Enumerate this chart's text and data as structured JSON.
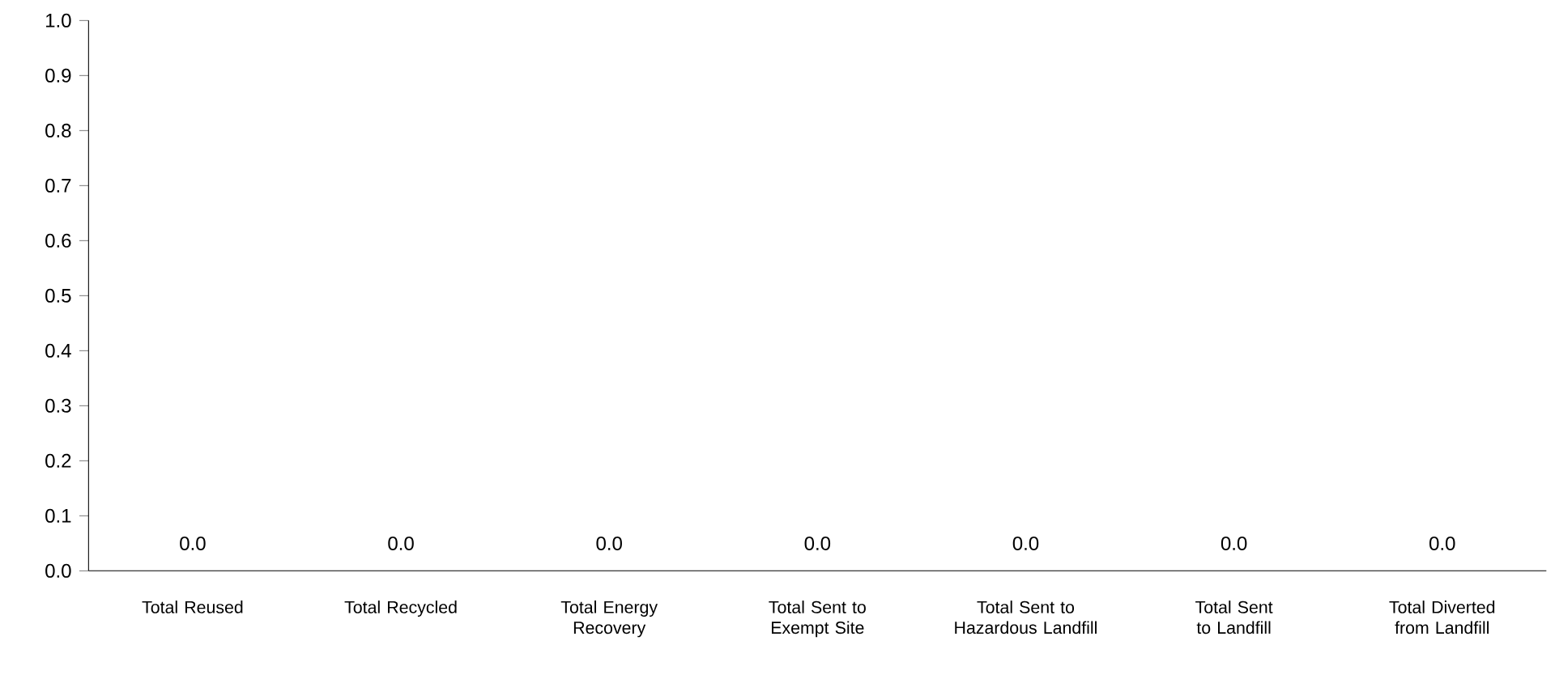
{
  "chart_data": {
    "type": "bar",
    "categories": [
      "Total Reused",
      "Total Recycled",
      "Total Energy Recovery",
      "Total Sent to Exempt Site",
      "Total Sent to Hazardous Landfill",
      "Total Sent to Landfill",
      "Total Diverted from Landfill"
    ],
    "values": [
      0,
      0,
      0,
      0,
      0,
      0,
      0
    ],
    "value_labels": [
      "0.0",
      "0.0",
      "0.0",
      "0.0",
      "0.0",
      "0.0",
      "0.0"
    ],
    "ylim": [
      0,
      1
    ],
    "yticks": [
      {
        "value": 0,
        "label": "0.0"
      },
      {
        "value": 0.1,
        "label": "0.1"
      },
      {
        "value": 0.2,
        "label": "0.2"
      },
      {
        "value": 0.3,
        "label": "0.3"
      },
      {
        "value": 0.4,
        "label": "0.4"
      },
      {
        "value": 0.5,
        "label": "0.5"
      },
      {
        "value": 0.6,
        "label": "0.6"
      },
      {
        "value": 0.7,
        "label": "0.7"
      },
      {
        "value": 0.8,
        "label": "0.8"
      },
      {
        "value": 0.9,
        "label": "0.9"
      },
      {
        "value": 1,
        "label": "1.0"
      }
    ],
    "grid": false
  }
}
